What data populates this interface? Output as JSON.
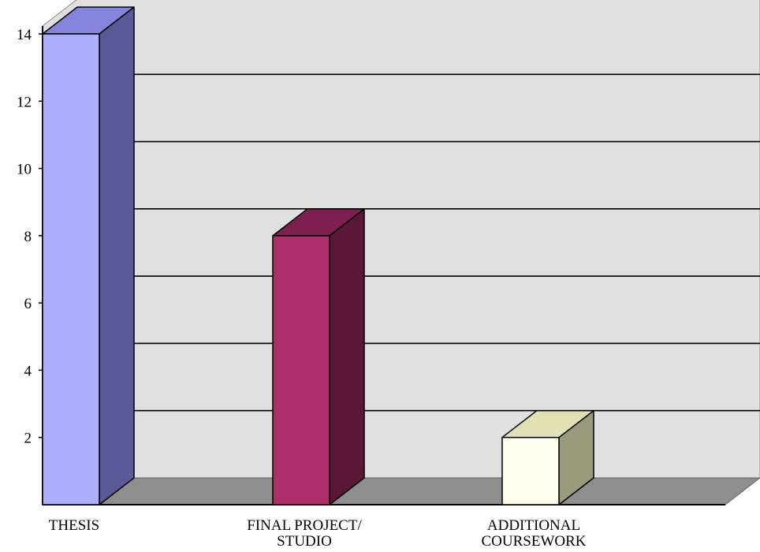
{
  "chart_data": {
    "type": "bar",
    "categories": [
      "THESIS",
      "FINAL PROJECT/ STUDIO",
      "ADDITIONAL COURSEWORK"
    ],
    "category_lines": [
      [
        "THESIS"
      ],
      [
        "FINAL PROJECT/",
        "STUDIO"
      ],
      [
        "ADDITIONAL",
        "COURSEWORK"
      ]
    ],
    "values": [
      14,
      8,
      2
    ],
    "yticks": [
      "2",
      "4",
      "6",
      "8",
      "10",
      "12",
      "14"
    ],
    "ylim": [
      0,
      14
    ],
    "title": "",
    "xlabel": "",
    "ylabel": "",
    "grid": true,
    "three_d": true,
    "bar_colors": [
      {
        "front": "#aeaeff",
        "side": "#5a5a98",
        "top": "#8484dc"
      },
      {
        "front": "#ae2e6a",
        "side": "#5a1737",
        "top": "#7e1f50"
      },
      {
        "front": "#fffff0",
        "side": "#9a9a7c",
        "top": "#e0e0b4"
      }
    ],
    "wall_color": "#e0e0e0",
    "floor_color": "#8e8e8e"
  }
}
